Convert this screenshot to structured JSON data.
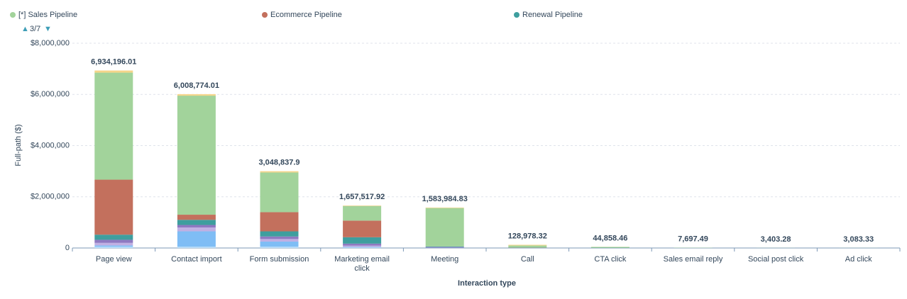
{
  "chart_data": {
    "type": "stacked_bar",
    "x_label": "Interaction type",
    "y_label": "Full-path ($)",
    "legend_page": "3/7",
    "categories": [
      "Page view",
      "Contact import",
      "Form submission",
      "Marketing email click",
      "Meeting",
      "Call",
      "CTA click",
      "Sales email reply",
      "Social post click",
      "Ad click"
    ],
    "series": [
      {
        "color": "#b8dcf9",
        "values": [
          50000,
          50000,
          50000,
          20000,
          10000,
          0,
          0,
          0,
          0,
          0
        ]
      },
      {
        "color": "#7fbdf5",
        "values": [
          50000,
          600000,
          200000,
          20000,
          0,
          0,
          0,
          0,
          0,
          0
        ]
      },
      {
        "color": "#c0b0e3",
        "values": [
          100000,
          150000,
          100000,
          50000,
          0,
          0,
          0,
          0,
          0,
          0
        ]
      },
      {
        "color": "#8e79c1",
        "values": [
          120000,
          100000,
          100000,
          80000,
          30000,
          5000,
          0,
          0,
          0,
          0
        ]
      },
      {
        "name": "Renewal Pipeline",
        "color": "#3e9e9e",
        "values": [
          200000,
          200000,
          200000,
          250000,
          20000,
          5000,
          10000,
          0,
          0,
          0
        ]
      },
      {
        "name": "Ecommerce Pipeline",
        "color": "#c3705d",
        "values": [
          2150000,
          200000,
          750000,
          650000,
          0,
          5000,
          0,
          0,
          0,
          0
        ]
      },
      {
        "name": "[*] Sales Pipeline",
        "color": "#a2d39b",
        "values": [
          4180000,
          4650000,
          1550000,
          570000,
          1500000,
          80000,
          30000,
          7697,
          3403,
          3083
        ]
      },
      {
        "color": "#f5d58a",
        "values": [
          84000,
          60000,
          50000,
          20000,
          20000,
          30000,
          5000,
          0,
          0,
          0
        ]
      }
    ],
    "totals": {
      "values": [
        6934196.01,
        6008774.01,
        3048837.9,
        1657517.92,
        1583984.83,
        128978.32,
        44858.46,
        7697.49,
        3403.28,
        3083.33
      ],
      "value_labels": [
        "6,934,196.01",
        "6,008,774.01",
        "3,048,837.9",
        "1,657,517.92",
        "1,583,984.83",
        "128,978.32",
        "44,858.46",
        "7,697.49",
        "3,403.28",
        "3,083.33"
      ]
    },
    "ylim": [
      0,
      8000000
    ],
    "yticks": [
      0,
      {
        "value": 2000000,
        "label": "$2,000,000"
      },
      {
        "value": 4000000,
        "label": "$4,000,000"
      },
      {
        "value": 6000000,
        "label": "$6,000,000"
      },
      {
        "value": 8000000,
        "label": "$8,000,000"
      }
    ],
    "grid": true
  }
}
